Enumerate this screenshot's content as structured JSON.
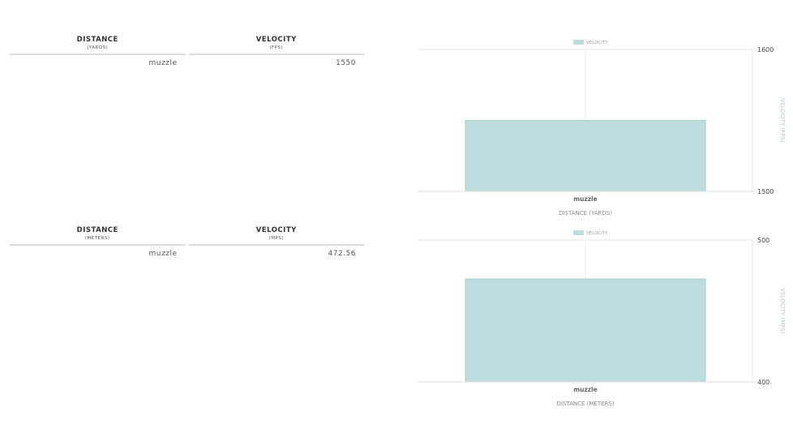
{
  "tables": [
    {
      "headers": [
        {
          "title": "DISTANCE",
          "unit": "(YARDS)"
        },
        {
          "title": "VELOCITY",
          "unit": "(FPS)"
        }
      ],
      "rows": [
        [
          "muzzle",
          "1550"
        ]
      ]
    },
    {
      "headers": [
        {
          "title": "DISTANCE",
          "unit": "(METERS)"
        },
        {
          "title": "VELOCITY",
          "unit": "(MPS)"
        }
      ],
      "rows": [
        [
          "muzzle",
          "472.56"
        ]
      ]
    }
  ],
  "chart_data": [
    {
      "type": "bar",
      "categories": [
        "muzzle"
      ],
      "series": [
        {
          "name": "VELOCITY",
          "values": [
            1550
          ]
        }
      ],
      "xlabel": "DISTANCE (YARDS)",
      "ylabel": "VELOCITY (FPS)",
      "ylim": [
        1500,
        1600
      ],
      "yticks": [
        "1600",
        "1500"
      ],
      "legend": "top",
      "grid": true,
      "color": "#bddcdd"
    },
    {
      "type": "bar",
      "categories": [
        "muzzle"
      ],
      "series": [
        {
          "name": "VELOCITY",
          "values": [
            472.56
          ]
        }
      ],
      "xlabel": "DISTANCE (METERS)",
      "ylabel": "VELOCITY (MPS)",
      "ylim": [
        400,
        500
      ],
      "yticks": [
        "500",
        "400"
      ],
      "legend": "top",
      "grid": true,
      "color": "#bddcdd"
    }
  ]
}
